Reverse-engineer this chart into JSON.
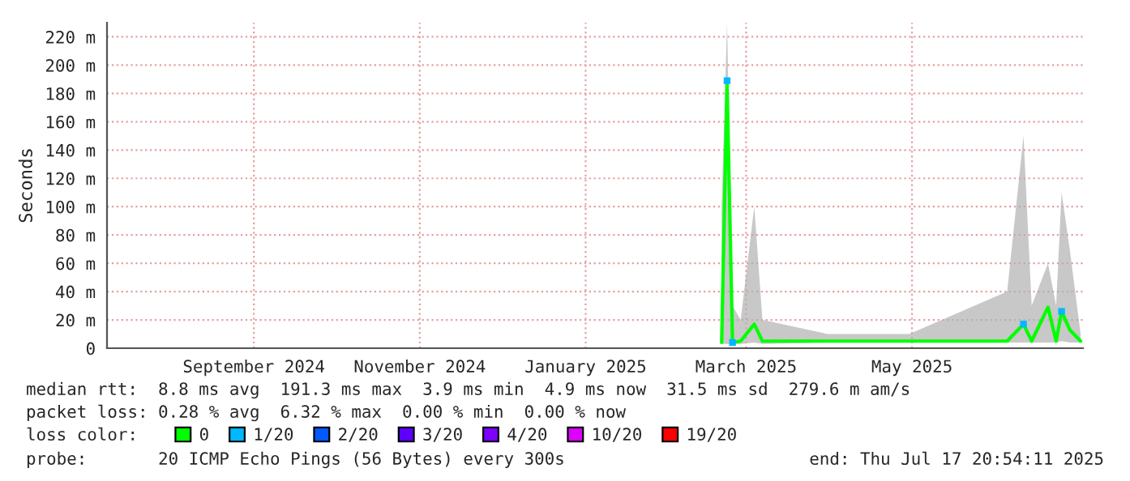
{
  "chart_data": {
    "type": "line",
    "ylabel": "Seconds",
    "legend_title": "loss color:",
    "annotations": [
      "median rtt:  8.8 ms avg  191.3 ms max  3.9 ms min  4.9 ms now  31.5 ms sd  279.6 m am/s",
      "packet loss: 0.28 % avg  6.32 % max  0.00 % min  0.00 % now",
      "probe:       20 ICMP Echo Pings (56 Bytes) every 300s",
      "end: Thu Jul 17 20:54:11 2025"
    ],
    "xlim": [
      "2024-07-24",
      "2025-07-17T20:54"
    ],
    "xticks": [
      {
        "value": "2024-09-16",
        "label": "September 2024"
      },
      {
        "value": "2024-11-16",
        "label": "November 2024"
      },
      {
        "value": "2025-01-16",
        "label": "January 2025"
      },
      {
        "value": "2025-03-16",
        "label": "March 2025"
      },
      {
        "value": "2025-05-16",
        "label": "May 2025"
      }
    ],
    "ylim": [
      0,
      230
    ],
    "yticks": [
      0,
      {
        "value": 20,
        "label": "20 m"
      },
      {
        "value": 40,
        "label": "40 m"
      },
      {
        "value": 60,
        "label": "60 m"
      },
      {
        "value": 80,
        "label": "80 m"
      },
      {
        "value": 100,
        "label": "100 m"
      },
      {
        "value": 120,
        "label": "120 m"
      },
      {
        "value": 140,
        "label": "140 m"
      },
      {
        "value": 160,
        "label": "160 m"
      },
      {
        "value": 180,
        "label": "180 m"
      },
      {
        "value": 200,
        "label": "200 m"
      },
      {
        "value": 220,
        "label": "220 m"
      }
    ],
    "grid": true,
    "legend": "bottom",
    "series": [
      {
        "name": "0",
        "color": "#00ff00",
        "x": [
          "2025-03-07",
          "2025-03-09",
          "2025-03-11",
          "2025-03-14",
          "2025-03-19",
          "2025-03-22",
          "2025-04-15",
          "2025-05-15",
          "2025-06-20",
          "2025-06-26",
          "2025-06-29",
          "2025-07-05",
          "2025-07-08",
          "2025-07-10",
          "2025-07-13",
          "2025-07-17"
        ],
        "values": [
          4,
          187,
          4,
          5,
          17,
          5,
          5,
          5,
          5,
          17,
          5,
          29,
          5,
          26,
          13,
          5
        ],
        "lower": [
          3,
          3,
          3,
          3,
          4,
          3,
          4,
          4,
          4,
          4,
          4,
          4,
          4,
          5,
          4,
          4
        ],
        "upper": [
          100,
          230,
          30,
          20,
          100,
          20,
          10,
          10,
          40,
          150,
          30,
          60,
          30,
          110,
          70,
          10
        ]
      },
      {
        "name": "1/20",
        "type": "scatter",
        "color": "#00b8ff",
        "x": [
          "2025-03-09",
          "2025-03-11",
          "2025-06-26",
          "2025-07-10"
        ],
        "values": [
          189,
          4,
          17,
          26
        ]
      },
      {
        "name": "2/20",
        "type": "scatter",
        "color": "#0059ff"
      },
      {
        "name": "3/20",
        "type": "scatter",
        "color": "#5e00ff"
      },
      {
        "name": "4/20",
        "type": "scatter",
        "color": "#7e00ff"
      },
      {
        "name": "10/20",
        "type": "scatter",
        "color": "#dd00ff"
      },
      {
        "name": "19/20",
        "type": "scatter",
        "color": "#ff0000"
      }
    ]
  }
}
